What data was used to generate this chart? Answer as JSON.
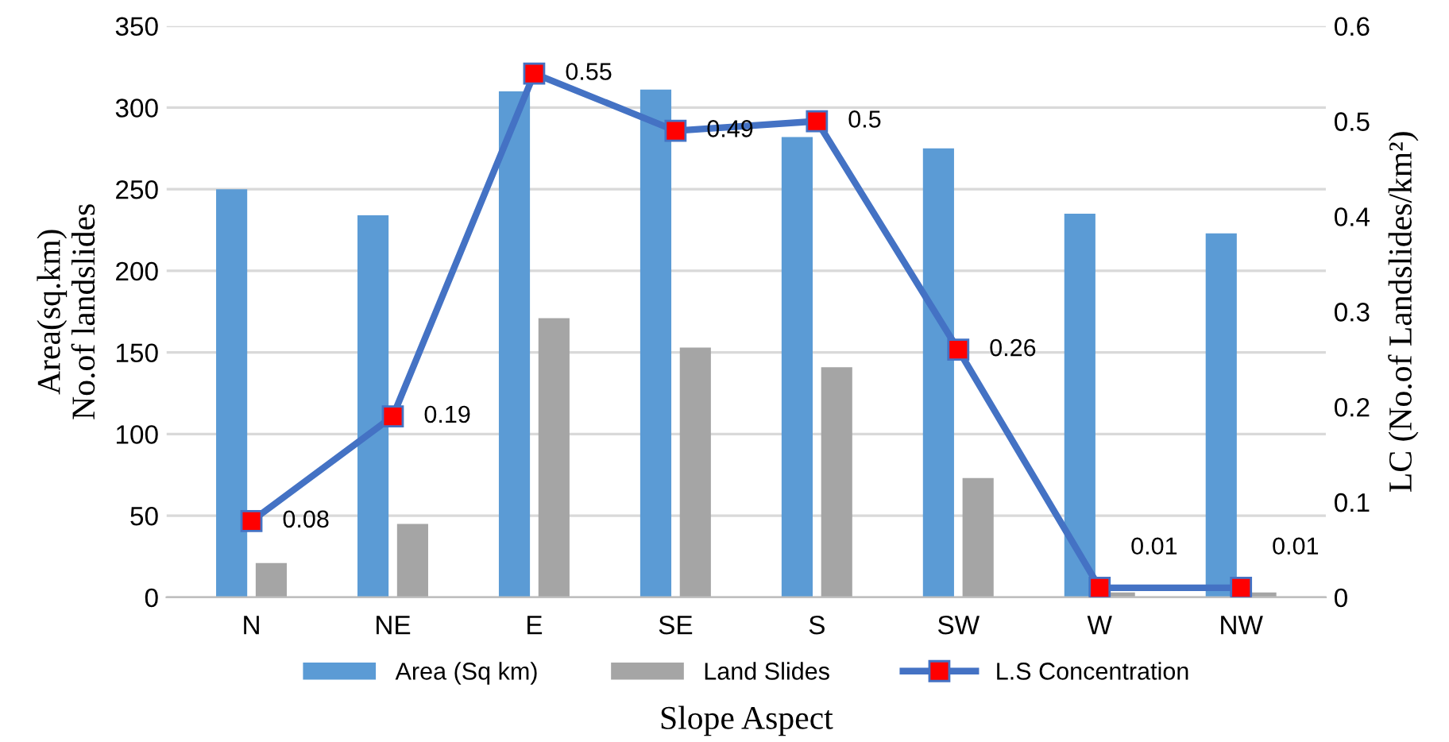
{
  "chart_data": {
    "type": "bar",
    "xlabel": "Slope Aspect",
    "ylabel": "Area(sq.km)\nNo.of landslides",
    "y2label": "LC (No.of Landslides/km²)",
    "categories": [
      "N",
      "NE",
      "E",
      "SE",
      "S",
      "SW",
      "W",
      "NW"
    ],
    "series": [
      {
        "name": "Area (Sq km)",
        "color": "#5b9bd5",
        "values": [
          250,
          234,
          310,
          311,
          282,
          275,
          235,
          223
        ]
      },
      {
        "name": "Land Slides",
        "color": "#a5a5a5",
        "values": [
          21,
          45,
          171,
          153,
          141,
          73,
          3,
          3
        ]
      },
      {
        "name": "L.S Concentration",
        "type": "line",
        "axis": "y2",
        "color": "#4472c4",
        "marker": "square",
        "data_labels": true,
        "values": [
          0.08,
          0.19,
          0.55,
          0.49,
          0.5,
          0.26,
          0.01,
          0.01
        ]
      }
    ],
    "ylim": [
      0,
      350
    ],
    "yticks": [
      0,
      50,
      100,
      150,
      200,
      250,
      300,
      350
    ],
    "y2lim": [
      0,
      0.6
    ],
    "y2ticks": [
      0,
      0.1,
      0.2,
      0.3,
      0.4,
      0.5,
      0.6
    ],
    "grid": "y",
    "legend": "bottom"
  }
}
